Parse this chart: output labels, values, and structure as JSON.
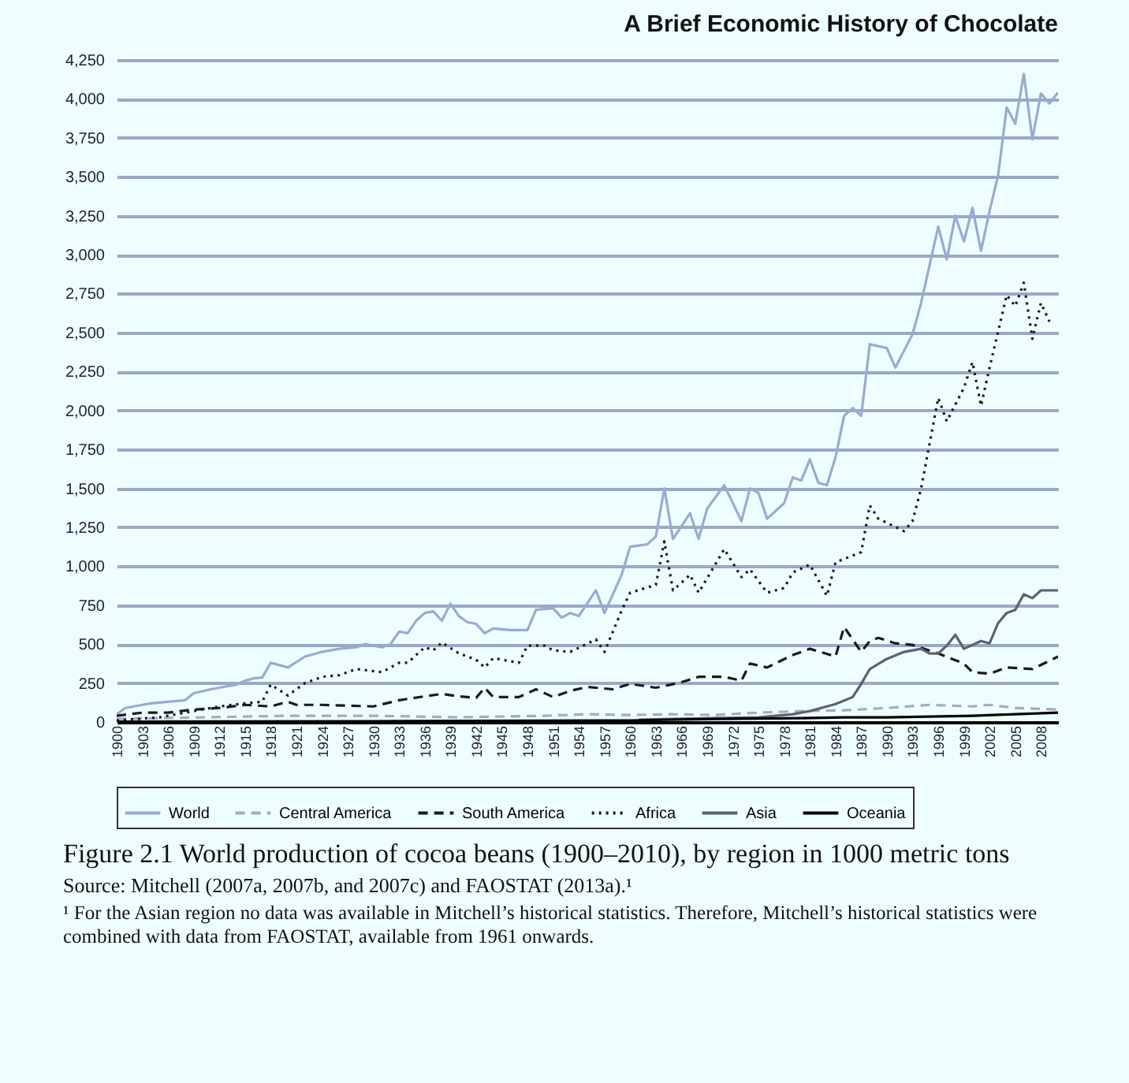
{
  "chart_data": {
    "type": "line",
    "title": "A Brief Economic History of Chocolate",
    "annotations": [
      "Figure 2.1 World production of cocoa beans (1900–2010), by region in 1000 metric tons",
      "Source: Mitchell (2007a, 2007b, and 2007c) and FAOSTAT (2013a).¹",
      "¹ For the Asian region no data was available in Mitchell’s historical statistics. Therefore, Mitchell’s historical statistics were combined with data from FAOSTAT, available from 1961 onwards."
    ],
    "xlim": [
      1900,
      2010
    ],
    "xticks": [
      1900,
      1903,
      1906,
      1909,
      1912,
      1915,
      1918,
      1921,
      1924,
      1927,
      1930,
      1933,
      1936,
      1939,
      1942,
      1945,
      1948,
      1951,
      1954,
      1957,
      1960,
      1963,
      1966,
      1969,
      1972,
      1975,
      1978,
      1981,
      1984,
      1987,
      1990,
      1993,
      1996,
      1999,
      2002,
      2005,
      2008
    ],
    "ylim": [
      0,
      4250
    ],
    "yticks": [
      0,
      250,
      500,
      750,
      {
        "value": 1000,
        "label": "1,000"
      },
      {
        "value": 1250,
        "label": "1,250"
      },
      {
        "value": 1500,
        "label": "1,500"
      },
      {
        "value": 1750,
        "label": "1,750"
      },
      {
        "value": 2000,
        "label": "2,000"
      },
      {
        "value": 2250,
        "label": "2,250"
      },
      {
        "value": 2500,
        "label": "2,500"
      },
      {
        "value": 2750,
        "label": "2,750"
      },
      {
        "value": 3000,
        "label": "3,000"
      },
      {
        "value": 3250,
        "label": "3,250"
      },
      {
        "value": 3500,
        "label": "3,500"
      },
      {
        "value": 3750,
        "label": "3,750"
      },
      {
        "value": 4000,
        "label": "4,000"
      },
      {
        "value": 4250,
        "label": "4,250"
      }
    ],
    "grid": "y",
    "legend": "bottom",
    "series": [
      {
        "name": "World",
        "color": "#9aaad2",
        "line_style": "solid",
        "x": [
          1900,
          1901,
          1902,
          1904,
          1906,
          1908,
          1909,
          1911,
          1913,
          1914,
          1915,
          1916,
          1917,
          1918,
          1920,
          1922,
          1924,
          1925,
          1926,
          1928,
          1929,
          1931,
          1932,
          1933,
          1934,
          1935,
          1936,
          1937,
          1938,
          1939,
          1940,
          1941,
          1942,
          1943,
          1944,
          1946,
          1948,
          1949,
          1951,
          1952,
          1953,
          1954,
          1956,
          1957,
          1959,
          1960,
          1962,
          1963,
          1964,
          1965,
          1967,
          1968,
          1969,
          1971,
          1973,
          1974,
          1975,
          1976,
          1978,
          1979,
          1980,
          1981,
          1982,
          1983,
          1984,
          1985,
          1986,
          1987,
          1988,
          1990,
          1991,
          1993,
          1994,
          1996,
          1997,
          1998,
          1999,
          2000,
          2001,
          2002,
          2003,
          2004,
          2005,
          2006,
          2007,
          2008,
          2009,
          2010
        ],
        "values": [
          50,
          90,
          100,
          120,
          130,
          140,
          185,
          210,
          230,
          240,
          265,
          280,
          285,
          380,
          350,
          420,
          450,
          460,
          470,
          480,
          500,
          480,
          500,
          580,
          570,
          650,
          700,
          710,
          650,
          760,
          680,
          640,
          630,
          570,
          600,
          590,
          590,
          720,
          730,
          670,
          700,
          680,
          845,
          700,
          944,
          1125,
          1140,
          1190,
          1500,
          1175,
          1340,
          1175,
          1370,
          1520,
          1290,
          1500,
          1470,
          1305,
          1405,
          1570,
          1550,
          1685,
          1535,
          1520,
          1700,
          1965,
          2015,
          1965,
          2425,
          2400,
          2275,
          2490,
          2690,
          3180,
          2970,
          3250,
          3085,
          3300,
          3025,
          3280,
          3510,
          3945,
          3840,
          4160,
          3740,
          4035,
          3970,
          4040
        ]
      },
      {
        "name": "Central America",
        "color": "#a4acbc",
        "line_style": "dashed",
        "x": [
          1900,
          1910,
          1920,
          1930,
          1940,
          1950,
          1955,
          1960,
          1965,
          1970,
          1975,
          1980,
          1985,
          1990,
          1995,
          2000,
          2002,
          2005,
          2010
        ],
        "values": [
          20,
          30,
          40,
          40,
          30,
          40,
          50,
          45,
          50,
          45,
          60,
          70,
          75,
          90,
          110,
          100,
          110,
          90,
          80
        ]
      },
      {
        "name": "South America",
        "color": "#1a1a1a",
        "line_style": "dashed",
        "x": [
          1900,
          1903,
          1906,
          1909,
          1912,
          1915,
          1918,
          1920,
          1921,
          1924,
          1927,
          1930,
          1933,
          1936,
          1938,
          1940,
          1942,
          1943,
          1944,
          1947,
          1949,
          1951,
          1953,
          1955,
          1958,
          1960,
          1963,
          1966,
          1968,
          1971,
          1973,
          1974,
          1976,
          1979,
          1981,
          1984,
          1985,
          1987,
          1988,
          1989,
          1991,
          1993,
          1996,
          1999,
          2000,
          2002,
          2004,
          2007,
          2010
        ],
        "values": [
          40,
          60,
          60,
          80,
          90,
          110,
          100,
          130,
          110,
          110,
          105,
          100,
          140,
          165,
          180,
          165,
          155,
          220,
          160,
          160,
          210,
          160,
          200,
          225,
          210,
          245,
          220,
          255,
          290,
          290,
          265,
          375,
          350,
          430,
          470,
          420,
          610,
          450,
          520,
          540,
          505,
          495,
          440,
          375,
          320,
          310,
          350,
          340,
          420
        ]
      },
      {
        "name": "Africa",
        "color": "#1a1a1a",
        "line_style": "dotted",
        "x": [
          1900,
          1905,
          1908,
          1912,
          1915,
          1917,
          1918,
          1920,
          1922,
          1924,
          1926,
          1928,
          1931,
          1933,
          1934,
          1936,
          1937,
          1938,
          1940,
          1942,
          1943,
          1944,
          1947,
          1948,
          1950,
          1951,
          1953,
          1956,
          1957,
          1959,
          1960,
          1963,
          1964,
          1965,
          1967,
          1968,
          1971,
          1973,
          1974,
          1976,
          1978,
          1979,
          1981,
          1983,
          1984,
          1987,
          1988,
          1989,
          1992,
          1993,
          1994,
          1996,
          1997,
          1999,
          2000,
          2001,
          2002,
          2004,
          2005,
          2006,
          2007,
          2008,
          2009
        ],
        "values": [
          10,
          30,
          60,
          100,
          120,
          130,
          240,
          170,
          250,
          290,
          300,
          340,
          320,
          380,
          380,
          480,
          460,
          510,
          440,
          400,
          350,
          410,
          380,
          490,
          490,
          460,
          450,
          530,
          450,
          715,
          830,
          880,
          1160,
          845,
          945,
          830,
          1110,
          930,
          980,
          830,
          860,
          960,
          1010,
          810,
          1025,
          1090,
          1390,
          1305,
          1225,
          1290,
          1500,
          2080,
          1930,
          2145,
          2310,
          2030,
          2275,
          2740,
          2670,
          2820,
          2460,
          2690,
          2570
        ]
      },
      {
        "name": "Asia",
        "color": "#5c6270",
        "line_style": "solid",
        "x": [
          1961,
          1965,
          1970,
          1975,
          1979,
          1981,
          1984,
          1986,
          1987,
          1988,
          1990,
          1992,
          1994,
          1995,
          1996,
          1997,
          1998,
          1999,
          2001,
          2002,
          2003,
          2004,
          2005,
          2006,
          2007,
          2008,
          2010
        ],
        "values": [
          15,
          20,
          25,
          30,
          50,
          70,
          115,
          160,
          245,
          340,
          405,
          450,
          470,
          440,
          440,
          490,
          560,
          470,
          520,
          505,
          635,
          700,
          720,
          820,
          795,
          845,
          845
        ]
      },
      {
        "name": "Oceania",
        "color": "#000000",
        "line_style": "solid",
        "x": [
          1900,
          1930,
          1960,
          1970,
          1980,
          1985,
          1990,
          1995,
          2000,
          2005,
          2010
        ],
        "values": [
          2,
          5,
          10,
          20,
          25,
          30,
          30,
          35,
          40,
          50,
          60
        ]
      }
    ]
  }
}
